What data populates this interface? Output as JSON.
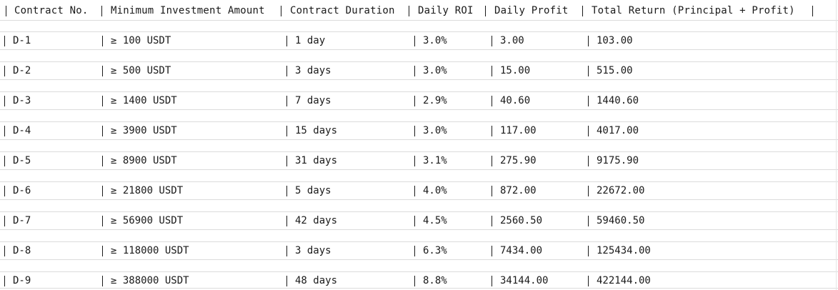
{
  "table": {
    "headers": [
      "Contract No.",
      "Minimum Investment Amount",
      "Contract Duration",
      "Daily ROI",
      "Daily Profit",
      "Total Return (Principal + Profit)"
    ],
    "rows": [
      [
        "D-1",
        "≥ 100 USDT",
        "1 day",
        "3.0%",
        "3.00",
        "103.00"
      ],
      [
        "D-2",
        "≥ 500 USDT",
        "3 days",
        "3.0%",
        "15.00",
        "515.00"
      ],
      [
        "D-3",
        "≥ 1400 USDT",
        "7 days",
        "2.9%",
        "40.60",
        "1440.60"
      ],
      [
        "D-4",
        "≥ 3900 USDT",
        "15 days",
        "3.0%",
        "117.00",
        "4017.00"
      ],
      [
        "D-5",
        "≥ 8900 USDT",
        "31 days",
        "3.1%",
        "275.90",
        "9175.90"
      ],
      [
        "D-6",
        "≥ 21800 USDT",
        "5 days",
        "4.0%",
        "872.00",
        "22672.00"
      ],
      [
        "D-7",
        "≥ 56900 USDT",
        "42 days",
        "4.5%",
        "2560.50",
        "59460.50"
      ],
      [
        "D-8",
        "≥ 118000 USDT",
        "3 days",
        "6.3%",
        "7434.00",
        "125434.00"
      ],
      [
        "D-9",
        "≥ 388000 USDT",
        "48 days",
        "8.8%",
        "34144.00",
        "422144.00"
      ]
    ]
  }
}
